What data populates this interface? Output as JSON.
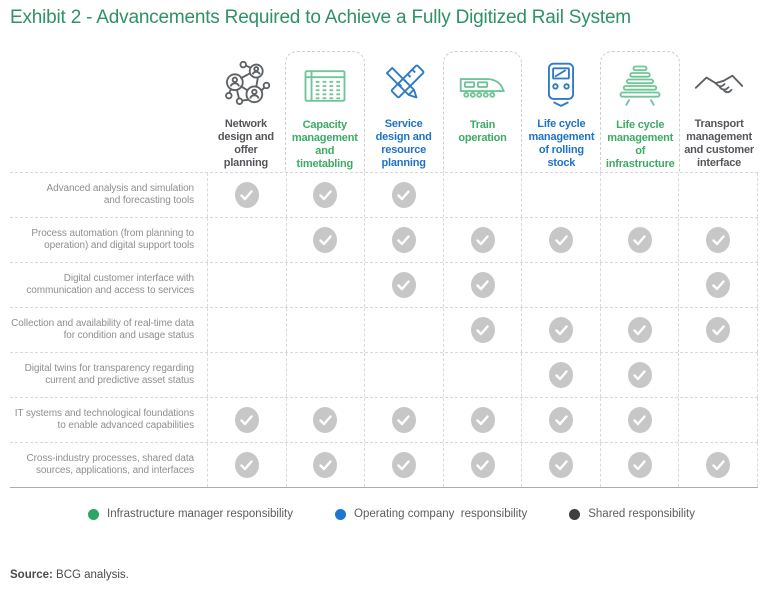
{
  "title": "Exhibit 2 - Advancements Required to Achieve a Fully Digitized Rail System",
  "colors": {
    "title_green": "#2F9166",
    "header_green": "#3DAB64",
    "header_blue": "#1F73C5",
    "header_dark": "#54565A",
    "icon_green": "#70C598",
    "icon_blue": "#2E7AC6",
    "icon_dark": "#5E6165",
    "check_gray": "#C7C7C8",
    "row_label_gray": "#8E8F91",
    "legend_text": "#5C5D5F",
    "legend_green": "#2AA863",
    "legend_blue": "#1B76D2",
    "legend_dark": "#3E3E40",
    "source_text_color": "#4B4B4B"
  },
  "columns": [
    {
      "label": "Network\ndesign and\noffer\nplanning",
      "icon": "network-icon",
      "color": "dark",
      "boxed": false
    },
    {
      "label": "Capacity\nmanagement\nand\ntimetabling",
      "icon": "timetable-icon",
      "color": "green",
      "boxed": true
    },
    {
      "label": "Service\ndesign and\nresource\nplanning",
      "icon": "pencil-ruler-icon",
      "color": "blue",
      "boxed": false
    },
    {
      "label": "Train\noperation",
      "icon": "train-side-icon",
      "color": "green",
      "boxed": true
    },
    {
      "label": "Life cycle\nmanagement\nof rolling\nstock",
      "icon": "train-front-icon",
      "color": "blue",
      "boxed": false
    },
    {
      "label": "Life cycle\nmanagement\nof\ninfrastructure",
      "icon": "rail-track-icon",
      "color": "green",
      "boxed": true
    },
    {
      "label": "Transport\nmanagement\nand customer\ninterface",
      "icon": "handshake-icon",
      "color": "dark",
      "boxed": false
    }
  ],
  "rows": [
    {
      "label": "Advanced analysis and simulation\nand forecasting tools",
      "checks": [
        1,
        1,
        1,
        0,
        0,
        0,
        0
      ]
    },
    {
      "label": "Process automation (from planning to\noperation) and digital support tools",
      "checks": [
        0,
        1,
        1,
        1,
        1,
        1,
        1
      ]
    },
    {
      "label": "Digital customer interface with\ncommunication and access to services",
      "checks": [
        0,
        0,
        1,
        1,
        0,
        0,
        1
      ]
    },
    {
      "label": "Collection and availability of real-time data\nfor condition and usage status",
      "checks": [
        0,
        0,
        0,
        1,
        1,
        1,
        1
      ]
    },
    {
      "label": "Digital twins for transparency regarding\ncurrent and predictive asset status",
      "checks": [
        0,
        0,
        0,
        0,
        1,
        1,
        0
      ]
    },
    {
      "label": "IT systems and technological foundations\nto enable advanced capabilities",
      "checks": [
        1,
        1,
        1,
        1,
        1,
        1,
        0
      ]
    },
    {
      "label": "Cross-industry processes, shared data\nsources, applications, and interfaces",
      "checks": [
        1,
        1,
        1,
        1,
        1,
        1,
        1
      ]
    }
  ],
  "legend": [
    {
      "label": "Infrastructure manager responsibility",
      "color_key": "legend_green"
    },
    {
      "label": "Operating company  responsibility",
      "color_key": "legend_blue"
    },
    {
      "label": "Shared responsibility",
      "color_key": "legend_dark"
    }
  ],
  "source": {
    "label": "Source:",
    "text": " BCG analysis."
  }
}
